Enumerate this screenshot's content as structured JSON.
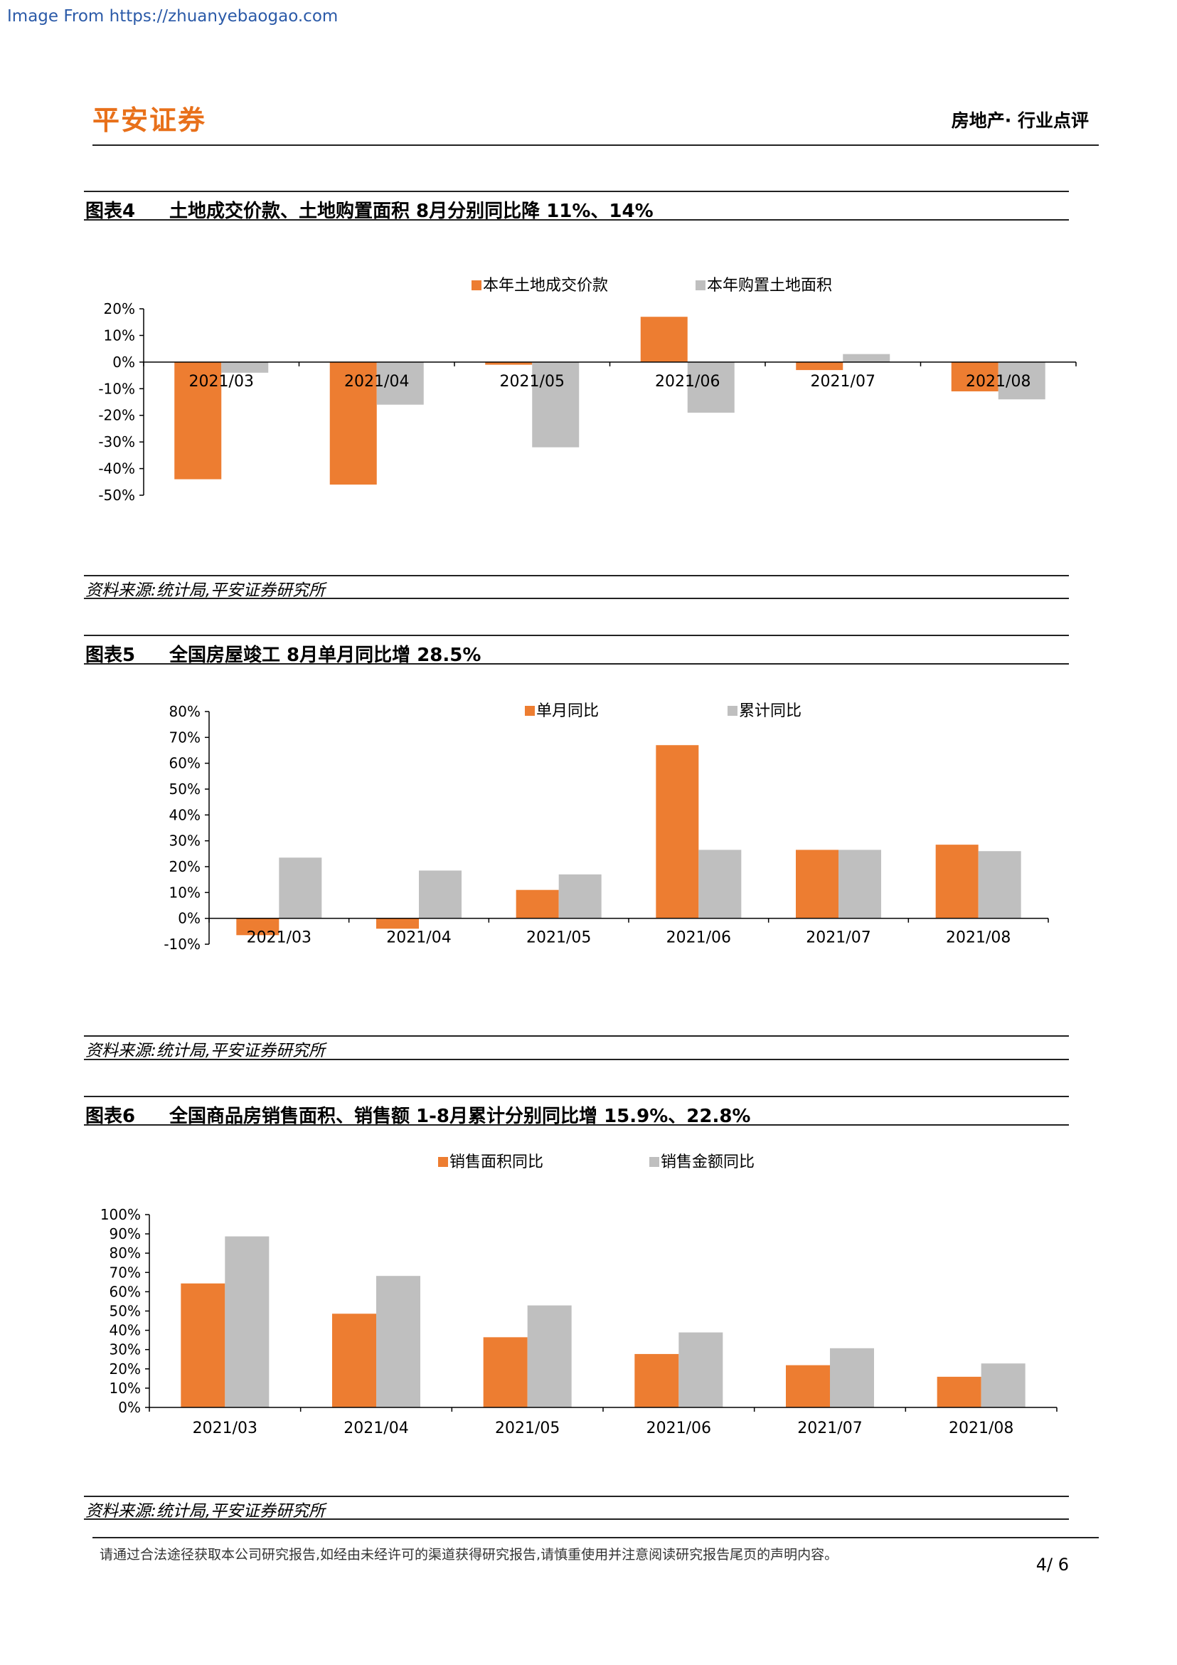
{
  "watermark": "Image From https://zhuanyebaogao.com",
  "header": {
    "logo": "平安证券",
    "section": "房地产· 行业点评"
  },
  "colors": {
    "series1": "#ED7D31",
    "series2": "#BFBFBF",
    "logo": "#E8701A"
  },
  "figures": [
    {
      "number": "图表4",
      "title": "土地成交价款、土地购置面积 8月分别同比降 11%、14%",
      "source": "资料来源:统计局,平安证券研究所",
      "chart_data": {
        "type": "bar",
        "categories": [
          "2021/03",
          "2021/04",
          "2021/05",
          "2021/06",
          "2021/07",
          "2021/08"
        ],
        "series": [
          {
            "name": "本年土地成交价款",
            "values": [
              -44,
              -46,
              -1,
              17,
              -3,
              -11
            ]
          },
          {
            "name": "本年购置土地面积",
            "values": [
              -4,
              -16,
              -32,
              -19,
              3,
              -14
            ]
          }
        ],
        "ylim": [
          -50,
          20
        ],
        "yticks": [
          20,
          10,
          0,
          -10,
          -20,
          -30,
          -40,
          -50
        ],
        "ytick_labels": [
          "20%",
          "10%",
          "0%",
          "-10%",
          "-20%",
          "-30%",
          "-40%",
          "-50%"
        ],
        "legend": "top-center"
      }
    },
    {
      "number": "图表5",
      "title": "全国房屋竣工 8月单月同比增 28.5%",
      "source": "资料来源:统计局,平安证券研究所",
      "chart_data": {
        "type": "bar",
        "categories": [
          "2021/03",
          "2021/04",
          "2021/05",
          "2021/06",
          "2021/07",
          "2021/08"
        ],
        "series": [
          {
            "name": "单月同比",
            "values": [
              -6.5,
              -4,
              11,
              67,
              26.5,
              28.5
            ]
          },
          {
            "name": "累计同比",
            "values": [
              23.5,
              18.5,
              17,
              26.5,
              26.5,
              26
            ]
          }
        ],
        "ylim": [
          -10,
          80
        ],
        "yticks": [
          80,
          70,
          60,
          50,
          40,
          30,
          20,
          10,
          0,
          -10
        ],
        "ytick_labels": [
          "80%",
          "70%",
          "60%",
          "50%",
          "40%",
          "30%",
          "20%",
          "10%",
          "0%",
          "-10%"
        ],
        "legend": "top-center"
      }
    },
    {
      "number": "图表6",
      "title": "全国商品房销售面积、销售额 1-8月累计分别同比增 15.9%、22.8%",
      "source": "资料来源:统计局,平安证券研究所",
      "chart_data": {
        "type": "bar",
        "categories": [
          "2021/03",
          "2021/04",
          "2021/05",
          "2021/06",
          "2021/07",
          "2021/08"
        ],
        "series": [
          {
            "name": "销售面积同比",
            "values": [
              64.3,
              48.6,
              36.4,
              27.7,
              21.9,
              15.9
            ]
          },
          {
            "name": "销售金额同比",
            "values": [
              88.7,
              68.2,
              52.9,
              38.9,
              30.7,
              22.8
            ]
          }
        ],
        "ylim": [
          0,
          100
        ],
        "yticks": [
          100,
          90,
          80,
          70,
          60,
          50,
          40,
          30,
          20,
          10,
          0
        ],
        "ytick_labels": [
          "100%",
          "90%",
          "80%",
          "70%",
          "60%",
          "50%",
          "40%",
          "30%",
          "20%",
          "10%",
          "0%"
        ],
        "legend": "top-center"
      }
    }
  ],
  "footer": {
    "disclaimer": "请通过合法途径获取本公司研究报告,如经由未经许可的渠道获得研究报告,请慎重使用并注意阅读研究报告尾页的声明内容。",
    "page": "4/ 6"
  }
}
